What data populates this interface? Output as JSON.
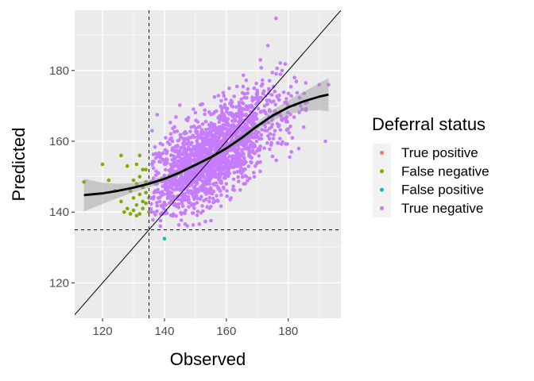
{
  "chart_data": {
    "type": "scatter",
    "xlabel": "Observed",
    "ylabel": "Predicted",
    "xlim": [
      111,
      197
    ],
    "ylim": [
      110,
      197
    ],
    "x_ticks": [
      120,
      140,
      160,
      180
    ],
    "y_ticks": [
      120,
      140,
      160,
      180
    ],
    "grid": true,
    "legend": {
      "title": "Deferral status",
      "placement": "right",
      "entries": [
        {
          "label": "True positive",
          "color": "#F8766D"
        },
        {
          "label": "False negative",
          "color": "#7CAE00"
        },
        {
          "label": "False positive",
          "color": "#00BFC4"
        },
        {
          "label": "True negative",
          "color": "#C77CFF"
        }
      ]
    },
    "reference_lines": {
      "identity": {
        "slope": 1,
        "intercept": 0,
        "style": "solid"
      },
      "vertical": {
        "x": 135,
        "style": "dashed"
      },
      "horizontal": {
        "y": 135,
        "style": "dashed"
      }
    },
    "smooth": {
      "x": [
        114,
        120,
        125,
        130,
        135,
        140,
        145,
        150,
        155,
        160,
        165,
        170,
        175,
        180,
        185,
        190,
        193
      ],
      "y": [
        144.8,
        145.3,
        146.0,
        146.9,
        148.0,
        149.4,
        151.2,
        153.3,
        155.5,
        158.0,
        161.0,
        164.3,
        167.3,
        169.6,
        171.3,
        172.6,
        173.2
      ],
      "lo": [
        140.2,
        142.3,
        144.0,
        145.6,
        146.9,
        148.5,
        150.4,
        152.6,
        154.8,
        157.2,
        160.0,
        163.1,
        165.8,
        167.6,
        168.6,
        168.8,
        168.5
      ],
      "hi": [
        149.4,
        148.3,
        148.0,
        148.2,
        149.1,
        150.3,
        152.0,
        154.0,
        156.2,
        158.8,
        162.0,
        165.5,
        168.8,
        171.6,
        174.0,
        176.4,
        177.9
      ]
    },
    "series": [
      {
        "name": "False negative",
        "color": "#7CAE00",
        "points": [
          [
            114,
            148.5
          ],
          [
            120,
            153.5
          ],
          [
            126,
            156
          ],
          [
            128,
            153
          ],
          [
            128,
            141
          ],
          [
            129,
            146
          ],
          [
            130,
            144
          ],
          [
            130,
            140.5
          ],
          [
            131,
            153.5
          ],
          [
            131,
            148
          ],
          [
            131,
            142
          ],
          [
            132,
            156
          ],
          [
            132,
            150
          ],
          [
            132,
            145
          ],
          [
            132,
            139.5
          ],
          [
            133,
            147
          ],
          [
            133,
            143
          ],
          [
            133,
            141
          ],
          [
            134,
            152
          ],
          [
            134,
            148.5
          ],
          [
            134,
            145.5
          ],
          [
            134,
            142.5
          ],
          [
            135,
            144
          ],
          [
            135,
            140
          ],
          [
            131,
            139
          ],
          [
            129,
            139.5
          ],
          [
            127,
            140
          ],
          [
            130,
            149
          ],
          [
            133,
            152
          ],
          [
            124,
            146
          ],
          [
            126,
            143
          ],
          [
            122,
            149
          ]
        ]
      },
      {
        "name": "False positive",
        "color": "#00BFC4",
        "points": [
          [
            140,
            132.5
          ]
        ]
      },
      {
        "name": "True negative",
        "color": "#C77CFF",
        "points": [
          [
            171,
            183
          ],
          [
            190,
            176
          ],
          [
            193,
            176
          ],
          [
            192,
            160
          ],
          [
            136,
            163
          ],
          [
            137,
            146
          ],
          [
            138,
            144
          ],
          [
            138,
            151
          ],
          [
            184,
            170
          ],
          [
            185,
            164
          ],
          [
            178,
            180
          ],
          [
            182,
            178
          ]
        ],
        "cloud": {
          "count": 1700,
          "x_mean": 155,
          "x_sd": 11,
          "x_min": 135.5,
          "x_max": 193,
          "y_sd": 6.3,
          "seed": 7
        }
      },
      {
        "name": "True positive",
        "color": "#F8766D",
        "points": []
      }
    ]
  }
}
